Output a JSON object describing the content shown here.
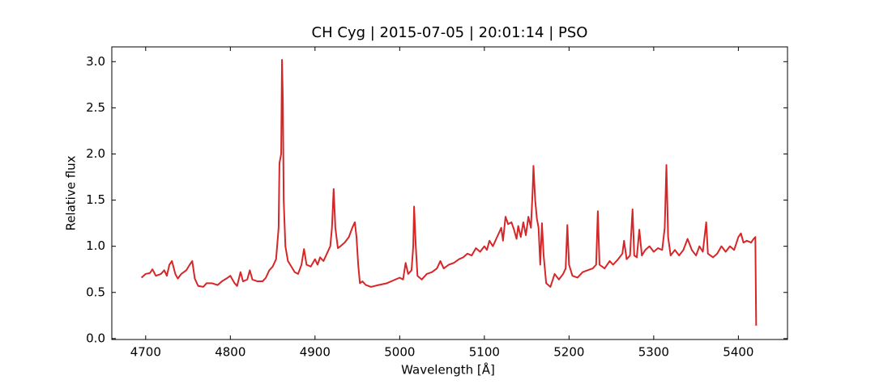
{
  "chart_data": {
    "type": "line",
    "title": "CH Cyg | 2015-07-05 | 20:01:14 | PSO",
    "x_label": "Wavelength [Å]",
    "y_label": "Relative flux",
    "xlim": [
      4660,
      5458
    ],
    "ylim": [
      -0.01,
      3.16
    ],
    "xticks": [
      4700,
      4800,
      4900,
      5000,
      5100,
      5200,
      5300,
      5400
    ],
    "yticks": [
      {
        "value": 0,
        "label": "0.0"
      },
      {
        "value": 0.5,
        "label": "0.5"
      },
      {
        "value": 1,
        "label": "1.0"
      },
      {
        "value": 1.5,
        "label": "1.5"
      },
      {
        "value": 2,
        "label": "2.0"
      },
      {
        "value": 2.5,
        "label": "2.5"
      },
      {
        "value": 3,
        "label": "3.0"
      }
    ],
    "x": [
      4695,
      4700,
      4705,
      4708,
      4712,
      4718,
      4722,
      4725,
      4728,
      4731,
      4735,
      4738,
      4742,
      4748,
      4752,
      4755,
      4758,
      4762,
      4768,
      4772,
      4778,
      4785,
      4790,
      4797,
      4800,
      4805,
      4808,
      4812,
      4815,
      4820,
      4823,
      4826,
      4832,
      4838,
      4842,
      4846,
      4850,
      4854,
      4857,
      4858,
      4860,
      4861,
      4862,
      4863,
      4865,
      4868,
      4872,
      4876,
      4880,
      4884,
      4887,
      4890,
      4895,
      4900,
      4903,
      4906,
      4910,
      4914,
      4918,
      4920,
      4922,
      4924,
      4927,
      4930,
      4935,
      4940,
      4944,
      4947,
      4949,
      4951,
      4953,
      4956,
      4960,
      4966,
      4975,
      4985,
      4995,
      5000,
      5004,
      5007,
      5010,
      5014,
      5016,
      5017,
      5019,
      5021,
      5026,
      5032,
      5038,
      5044,
      5048,
      5052,
      5058,
      5064,
      5070,
      5075,
      5080,
      5085,
      5090,
      5095,
      5100,
      5103,
      5106,
      5110,
      5115,
      5120,
      5122,
      5125,
      5128,
      5132,
      5135,
      5138,
      5140,
      5143,
      5146,
      5149,
      5152,
      5155,
      5157,
      5158,
      5160,
      5162,
      5164,
      5166,
      5168,
      5170,
      5173,
      5178,
      5183,
      5188,
      5193,
      5196,
      5198,
      5200,
      5204,
      5210,
      5216,
      5222,
      5228,
      5232,
      5234,
      5236,
      5242,
      5248,
      5252,
      5258,
      5263,
      5265,
      5268,
      5272,
      5275,
      5277,
      5280,
      5283,
      5286,
      5290,
      5295,
      5300,
      5305,
      5310,
      5313,
      5315,
      5317,
      5320,
      5325,
      5330,
      5335,
      5340,
      5345,
      5350,
      5354,
      5358,
      5362,
      5364,
      5370,
      5375,
      5380,
      5385,
      5390,
      5395,
      5400,
      5403,
      5406,
      5410,
      5415,
      5418,
      5420,
      5421
    ],
    "series": [
      {
        "color": "#d62728",
        "values": [
          0.66,
          0.7,
          0.71,
          0.75,
          0.68,
          0.7,
          0.74,
          0.68,
          0.8,
          0.84,
          0.7,
          0.65,
          0.7,
          0.74,
          0.8,
          0.84,
          0.65,
          0.57,
          0.56,
          0.6,
          0.6,
          0.58,
          0.62,
          0.66,
          0.68,
          0.6,
          0.57,
          0.72,
          0.62,
          0.64,
          0.74,
          0.64,
          0.62,
          0.62,
          0.66,
          0.74,
          0.78,
          0.86,
          1.2,
          1.9,
          2.0,
          3.02,
          2.6,
          1.5,
          1.0,
          0.84,
          0.78,
          0.72,
          0.7,
          0.8,
          0.97,
          0.8,
          0.78,
          0.86,
          0.8,
          0.88,
          0.84,
          0.92,
          1.0,
          1.2,
          1.62,
          1.2,
          0.98,
          1.0,
          1.04,
          1.1,
          1.2,
          1.26,
          1.1,
          0.8,
          0.6,
          0.62,
          0.58,
          0.56,
          0.58,
          0.6,
          0.64,
          0.66,
          0.64,
          0.82,
          0.7,
          0.74,
          1.0,
          1.43,
          1.0,
          0.68,
          0.64,
          0.7,
          0.72,
          0.76,
          0.84,
          0.76,
          0.8,
          0.82,
          0.86,
          0.88,
          0.92,
          0.9,
          0.98,
          0.94,
          1.0,
          0.96,
          1.06,
          1.0,
          1.1,
          1.2,
          1.06,
          1.32,
          1.24,
          1.26,
          1.18,
          1.08,
          1.22,
          1.1,
          1.26,
          1.12,
          1.32,
          1.2,
          1.6,
          1.87,
          1.5,
          1.3,
          1.2,
          0.8,
          1.25,
          0.9,
          0.6,
          0.56,
          0.7,
          0.64,
          0.7,
          0.76,
          1.23,
          0.8,
          0.68,
          0.66,
          0.72,
          0.74,
          0.76,
          0.8,
          1.38,
          0.8,
          0.76,
          0.84,
          0.8,
          0.86,
          0.92,
          1.06,
          0.86,
          0.9,
          1.4,
          0.9,
          0.88,
          1.18,
          0.9,
          0.96,
          1.0,
          0.94,
          0.98,
          0.96,
          1.2,
          1.88,
          1.1,
          0.9,
          0.96,
          0.9,
          0.96,
          1.08,
          0.96,
          0.9,
          1.0,
          0.94,
          1.26,
          0.92,
          0.88,
          0.92,
          1.0,
          0.94,
          1.0,
          0.96,
          1.1,
          1.14,
          1.04,
          1.06,
          1.04,
          1.08,
          1.1,
          0.14
        ]
      }
    ]
  }
}
